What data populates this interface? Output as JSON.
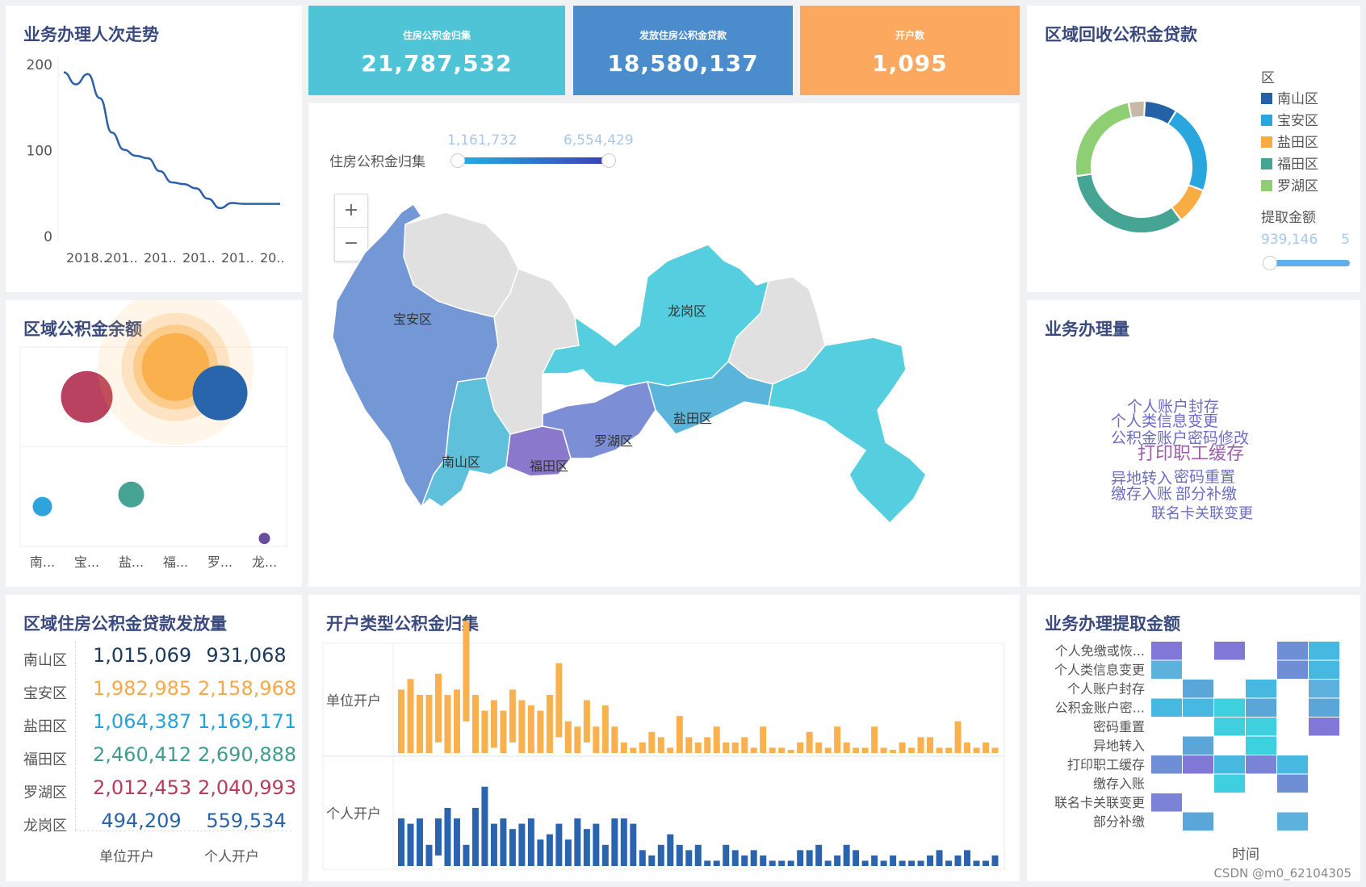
{
  "kpis": [
    {
      "label": "住房公积金归集",
      "value": "21,787,532",
      "color": "#4ec4d6"
    },
    {
      "label": "发放住房公积金贷款",
      "value": "18,580,137",
      "color": "#4a8ccc"
    },
    {
      "label": "开户数",
      "value": "1,095",
      "color": "#fda85f"
    }
  ],
  "trend": {
    "title": "业务办理人次走势",
    "chart_data": {
      "type": "line",
      "y_ticks": [
        "200",
        "100",
        "0"
      ],
      "x_ticks": [
        "2018..",
        "201..",
        "201..",
        "201..",
        "201..",
        "20.."
      ],
      "ylim": [
        0,
        200
      ],
      "values": [
        190,
        176,
        188,
        160,
        120,
        100,
        93,
        90,
        75,
        62,
        60,
        55,
        43,
        32,
        38,
        37,
        37,
        37,
        37
      ],
      "color": "#2b60a8"
    }
  },
  "balance": {
    "title": "区域公积金余额",
    "chart_data": {
      "type": "scatter",
      "categories": [
        "南...",
        "宝...",
        "盐...",
        "福...",
        "罗...",
        "龙..."
      ],
      "points": [
        {
          "region": "南山区",
          "x": 0,
          "y": 0.2,
          "size": 12,
          "color": "#2fa3dc"
        },
        {
          "region": "宝安区",
          "x": 1,
          "y": 0.75,
          "size": 32,
          "color": "#b8425f"
        },
        {
          "region": "盐田区",
          "x": 2,
          "y": 0.26,
          "size": 16,
          "color": "#46a394"
        },
        {
          "region": "福田区",
          "x": 3,
          "y": 0.9,
          "size": 42,
          "color": "#fbb04e",
          "halo": true
        },
        {
          "region": "罗湖区",
          "x": 4,
          "y": 0.77,
          "size": 34,
          "color": "#2865ad"
        },
        {
          "region": "龙岗区",
          "x": 5,
          "y": 0.04,
          "size": 7,
          "color": "#6a4c9c"
        }
      ]
    }
  },
  "loans_table": {
    "title": "区域住房公积金贷款发放量",
    "rows": [
      {
        "name": "南山区",
        "v1": "1,015,069",
        "v2": "931,068",
        "color": "#1c3a5e"
      },
      {
        "name": "宝安区",
        "v1": "1,982,985",
        "v2": "2,158,968",
        "color": "#f7a94a"
      },
      {
        "name": "盐田区",
        "v1": "1,064,387",
        "v2": "1,169,171",
        "color": "#27a2d8"
      },
      {
        "name": "福田区",
        "v1": "2,460,412",
        "v2": "2,690,888",
        "color": "#3f9c8f"
      },
      {
        "name": "罗湖区",
        "v1": "2,012,453",
        "v2": "2,040,993",
        "color": "#b53c5b"
      },
      {
        "name": "龙岗区",
        "v1": "494,209",
        "v2": "559,534",
        "color": "#2a64a8"
      }
    ],
    "col_labels": [
      "单位开户",
      "个人开户"
    ]
  },
  "map": {
    "legend_title": "住房公积金归集",
    "range_min": "1,161,732",
    "range_max": "6,554,429",
    "zoom_in": "+",
    "zoom_out": "−",
    "labels": [
      "宝安区",
      "龙岗区",
      "南山区",
      "福田区",
      "罗湖区",
      "盐田区"
    ]
  },
  "donut": {
    "title": "区域回收公积金贷款",
    "legend_title": "区",
    "slider_title": "提取金额",
    "slider_value": "939,146",
    "slider_value_cut": "5",
    "chart_data": {
      "type": "pie",
      "segments": [
        {
          "name": "南山区",
          "value": 8,
          "color": "#2462a8"
        },
        {
          "name": "宝安区",
          "value": 22,
          "color": "#2aa6df"
        },
        {
          "name": "盐田区",
          "value": 9,
          "color": "#f9ab44"
        },
        {
          "name": "福田区",
          "value": 33,
          "color": "#46a494"
        },
        {
          "name": "罗湖区",
          "value": 24,
          "color": "#8fcf74"
        },
        {
          "name": "",
          "value": 4,
          "color": "#c7b9a8"
        }
      ]
    }
  },
  "wordcloud": {
    "title": "业务办理量",
    "words": [
      {
        "text": "个人账户封存",
        "color": "#6b6cc4",
        "size": 19
      },
      {
        "text": "个人类信息变更",
        "color": "#6b6cc4",
        "size": 19
      },
      {
        "text": "公积金账户密码修改",
        "color": "#6b6cc4",
        "size": 19
      },
      {
        "text": "打印职工缓存",
        "color": "#9b5ea8",
        "size": 22
      },
      {
        "text": "异地转入",
        "color": "#6b6cc4",
        "size": 19
      },
      {
        "text": "密码重置",
        "color": "#6b6cc4",
        "size": 19
      },
      {
        "text": "缴存入账",
        "color": "#6b6cc4",
        "size": 19
      },
      {
        "text": "部分补缴",
        "color": "#6b6cc4",
        "size": 19
      },
      {
        "text": "联名卡关联变更",
        "color": "#6b6cc4",
        "size": 18
      }
    ]
  },
  "account_bars": {
    "title": "开户类型公积金归集",
    "chart_data": {
      "type": "bar",
      "series": [
        {
          "name": "单位开户",
          "color": "#f9b04e",
          "values": [
            60,
            70,
            55,
            55,
            65,
            55,
            60,
            95,
            55,
            40,
            45,
            40,
            50,
            50,
            45,
            40,
            55,
            70,
            30,
            25,
            40,
            25,
            45,
            25,
            10,
            5,
            10,
            20,
            15,
            5,
            35,
            15,
            10,
            15,
            25,
            10,
            10,
            15,
            5,
            25,
            5,
            5,
            3,
            10,
            20,
            10,
            5,
            25,
            10,
            5,
            5,
            25,
            5,
            3,
            10,
            5,
            15,
            15,
            5,
            5,
            30,
            10,
            5,
            10,
            5
          ],
          "offsets": [
            0,
            0,
            0,
            0,
            10,
            0,
            0,
            30,
            0,
            0,
            5,
            0,
            10,
            0,
            0,
            0,
            0,
            15,
            0,
            0,
            10,
            0,
            0,
            0,
            0,
            0,
            0,
            0,
            0,
            0,
            0,
            0,
            0,
            0,
            0,
            0,
            0,
            0,
            0,
            0,
            0,
            0,
            0,
            0,
            0,
            0,
            0,
            0,
            0,
            0,
            0,
            0,
            0,
            0,
            0,
            0,
            0,
            0,
            0,
            0,
            0,
            0,
            0,
            0,
            0
          ]
        },
        {
          "name": "个人开户",
          "color": "#2a64ae",
          "values": [
            45,
            40,
            45,
            20,
            35,
            55,
            45,
            20,
            55,
            75,
            40,
            45,
            35,
            40,
            45,
            25,
            30,
            40,
            25,
            45,
            35,
            40,
            20,
            45,
            45,
            40,
            15,
            10,
            20,
            30,
            20,
            15,
            20,
            5,
            5,
            20,
            15,
            10,
            15,
            10,
            5,
            5,
            5,
            15,
            15,
            20,
            5,
            10,
            20,
            15,
            5,
            10,
            5,
            10,
            5,
            5,
            5,
            10,
            15,
            5,
            10,
            15,
            5,
            5,
            10
          ],
          "offsets": [
            0,
            0,
            0,
            0,
            10,
            0,
            0,
            0,
            0,
            0,
            0,
            0,
            0,
            0,
            0,
            0,
            0,
            0,
            0,
            0,
            0,
            0,
            0,
            0,
            0,
            0,
            0,
            0,
            0,
            0,
            0,
            0,
            0,
            0,
            0,
            0,
            0,
            0,
            0,
            0,
            0,
            0,
            0,
            0,
            0,
            0,
            0,
            0,
            0,
            0,
            0,
            0,
            0,
            0,
            0,
            0,
            0,
            0,
            0,
            0,
            0,
            0,
            0,
            0,
            0
          ]
        }
      ]
    }
  },
  "heatmap": {
    "title": "业务办理提取金额",
    "x_label": "时间",
    "chart_data": {
      "type": "heatmap",
      "rows": [
        "个人免缴或恢...",
        "个人类信息变更",
        "个人账户封存",
        "公积金账户密...",
        "密码重置",
        "异地转入",
        "打印职工缓存",
        "缴存入账",
        "联名卡关联变更",
        "部分补缴"
      ],
      "cols": 6,
      "cells": [
        [
          0,
          0,
          "#8177d6"
        ],
        [
          0,
          2,
          "#8177d6"
        ],
        [
          0,
          4,
          "#6e8fd6"
        ],
        [
          0,
          5,
          "#47b8e0"
        ],
        [
          1,
          0,
          "#5cb2dd"
        ],
        [
          1,
          4,
          "#6e8fd6"
        ],
        [
          1,
          5,
          "#47b8e0"
        ],
        [
          2,
          1,
          "#5aa6d8"
        ],
        [
          2,
          3,
          "#47b8e0"
        ],
        [
          2,
          5,
          "#5cb2dd"
        ],
        [
          3,
          0,
          "#47b8e0"
        ],
        [
          3,
          1,
          "#47b8e0"
        ],
        [
          3,
          2,
          "#3fd0e0"
        ],
        [
          3,
          3,
          "#5aa6d8"
        ],
        [
          3,
          5,
          "#5aa6d8"
        ],
        [
          4,
          2,
          "#3fd0e0"
        ],
        [
          4,
          3,
          "#3fd0e0"
        ],
        [
          4,
          5,
          "#8177d6"
        ],
        [
          5,
          1,
          "#5aa6d8"
        ],
        [
          5,
          3,
          "#3fd0e0"
        ],
        [
          6,
          0,
          "#6e8fd6"
        ],
        [
          6,
          1,
          "#8177d6"
        ],
        [
          6,
          2,
          "#47b8e0"
        ],
        [
          6,
          3,
          "#7a83d6"
        ],
        [
          6,
          4,
          "#47b8e0"
        ],
        [
          7,
          2,
          "#3fd0e0"
        ],
        [
          7,
          4,
          "#6e8fd6"
        ],
        [
          8,
          0,
          "#7a83d6"
        ],
        [
          9,
          1,
          "#5aa6d8"
        ],
        [
          9,
          4,
          "#5cb2dd"
        ]
      ]
    }
  },
  "watermark": "CSDN @m0_62104305"
}
